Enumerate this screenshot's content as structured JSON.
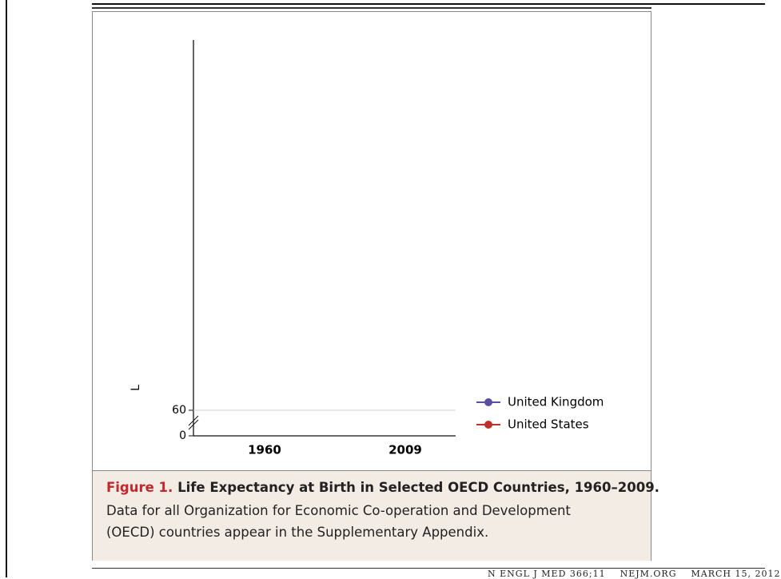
{
  "figure": {
    "y_label": "L",
    "y_ticks": [
      "60",
      "0"
    ],
    "x_ticks": [
      "1960",
      "2009"
    ],
    "legend": [
      "United Kingdom",
      "United States"
    ]
  },
  "caption": {
    "label": "Figure 1.",
    "title": "Life Expectancy at Birth in Selected OECD Countries, 1960–2009.",
    "text_lines": [
      "Data for all Organization for Economic Co-operation and Development",
      "(OECD) countries appear in the Supplementary Appendix."
    ]
  },
  "footer": [
    "N ENGL J MED 366;11",
    "NEJM.ORG",
    "MARCH 15, 2012"
  ]
}
